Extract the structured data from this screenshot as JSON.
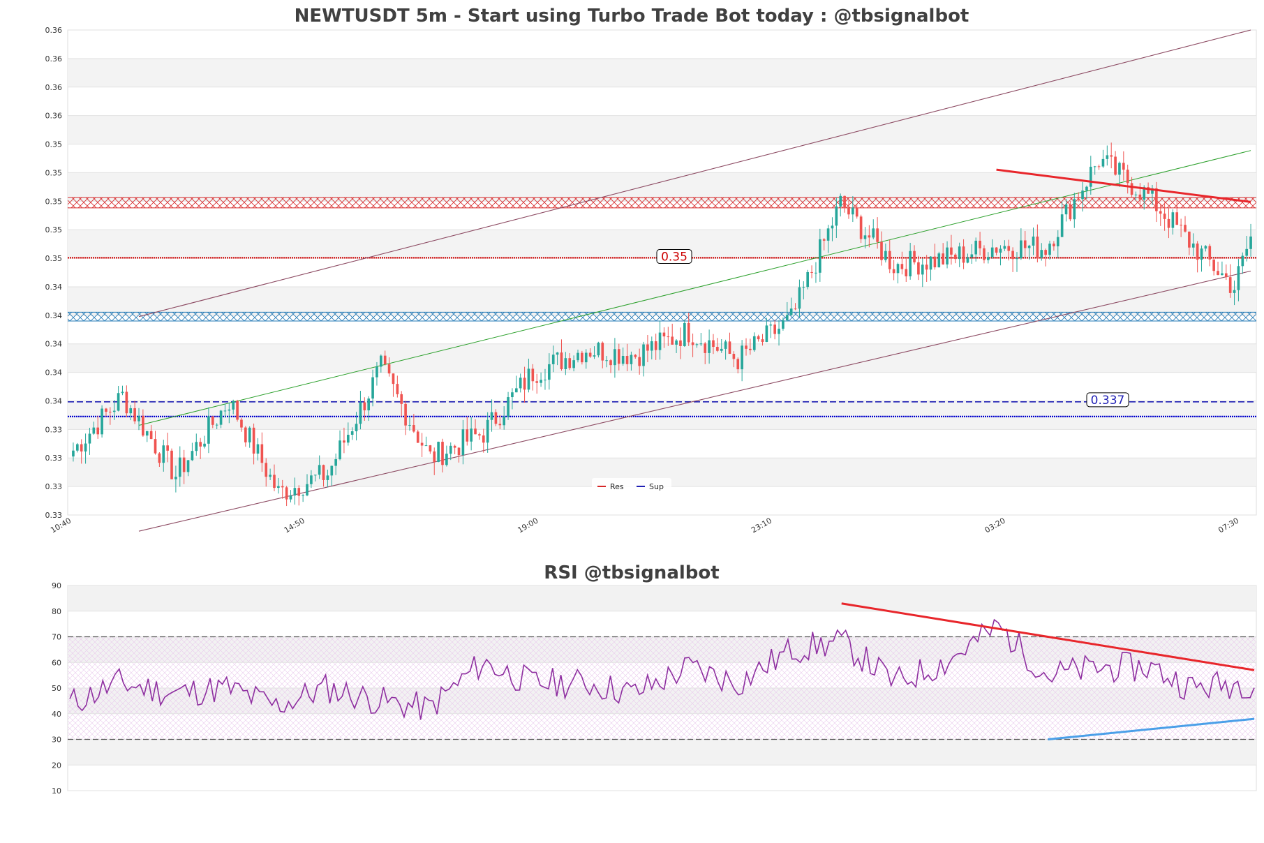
{
  "chart_data": [
    {
      "type": "candlestick",
      "title": "NEWTUSDT 5m - Start using Turbo Trade Bot today : @tbsignalbot",
      "x_ticks": [
        "10:40",
        "14:50",
        "19:00",
        "23:10",
        "03:20",
        "07:30"
      ],
      "y_ticks": [
        "0.33",
        "0.33",
        "0.33",
        "0.33",
        "0.34",
        "0.34",
        "0.34",
        "0.34",
        "0.34",
        "0.35",
        "0.35",
        "0.35",
        "0.35",
        "0.35",
        "0.36",
        "0.36",
        "0.36",
        "0.36"
      ],
      "y_range": [
        0.3295,
        0.3625
      ],
      "n_candles": 288,
      "close_anchors": [
        [
          0,
          0.3339
        ],
        [
          12,
          0.3376
        ],
        [
          25,
          0.3322
        ],
        [
          38,
          0.3373
        ],
        [
          50,
          0.331
        ],
        [
          62,
          0.3323
        ],
        [
          75,
          0.3395
        ],
        [
          87,
          0.3334
        ],
        [
          100,
          0.3351
        ],
        [
          112,
          0.3392
        ],
        [
          125,
          0.3408
        ],
        [
          137,
          0.3404
        ],
        [
          150,
          0.342
        ],
        [
          162,
          0.3401
        ],
        [
          175,
          0.3428
        ],
        [
          187,
          0.3507
        ],
        [
          200,
          0.3465
        ],
        [
          212,
          0.3469
        ],
        [
          225,
          0.3478
        ],
        [
          237,
          0.3477
        ],
        [
          250,
          0.3537
        ],
        [
          262,
          0.3512
        ],
        [
          272,
          0.3481
        ],
        [
          283,
          0.345
        ],
        [
          287,
          0.3484
        ]
      ],
      "levels": {
        "resistance_zone": [
          0.3504,
          0.3511
        ],
        "support_zone": [
          0.3427,
          0.3433
        ],
        "resistance_line": 0.347,
        "support_line": 0.3372,
        "support_line_2": 0.3362
      },
      "level_labels": {
        "resistance": "0.35",
        "support": "0.337"
      },
      "legend": [
        {
          "name": "Res",
          "color": "#d62728"
        },
        {
          "name": "Sup",
          "color": "#1f1fb4"
        }
      ],
      "channel": {
        "upper": [
          [
            16,
            0.343
          ],
          [
            287,
            0.3625
          ]
        ],
        "lower": [
          [
            16,
            0.3284
          ],
          [
            287,
            0.3461
          ]
        ],
        "mid": [
          [
            16,
            0.3356
          ],
          [
            287,
            0.3543
          ]
        ]
      },
      "trendline": [
        [
          225,
          0.353
        ],
        [
          287,
          0.3508
        ]
      ],
      "colors": {
        "up": "#26a69a",
        "down": "#ef5350"
      }
    },
    {
      "type": "line",
      "title": "RSI @tbsignalbot",
      "y_ticks": [
        "10",
        "20",
        "30",
        "40",
        "50",
        "60",
        "70",
        "80",
        "90"
      ],
      "y_range": [
        10,
        90
      ],
      "overbought": 70,
      "oversold": 30,
      "anchors": [
        [
          0,
          44
        ],
        [
          12,
          52
        ],
        [
          25,
          48
        ],
        [
          38,
          50
        ],
        [
          50,
          43
        ],
        [
          62,
          50
        ],
        [
          75,
          45
        ],
        [
          87,
          42
        ],
        [
          100,
          60
        ],
        [
          112,
          52
        ],
        [
          125,
          52
        ],
        [
          137,
          48
        ],
        [
          150,
          58
        ],
        [
          162,
          52
        ],
        [
          175,
          65
        ],
        [
          187,
          68
        ],
        [
          200,
          52
        ],
        [
          212,
          60
        ],
        [
          225,
          74
        ],
        [
          237,
          55
        ],
        [
          250,
          58
        ],
        [
          262,
          58
        ],
        [
          272,
          50
        ],
        [
          283,
          52
        ],
        [
          287,
          52
        ]
      ],
      "trendline_down": [
        [
          187,
          83
        ],
        [
          287,
          57
        ]
      ],
      "trendline_up": [
        [
          237,
          30
        ],
        [
          287,
          38
        ]
      ],
      "color": "#8e2ea0"
    }
  ]
}
